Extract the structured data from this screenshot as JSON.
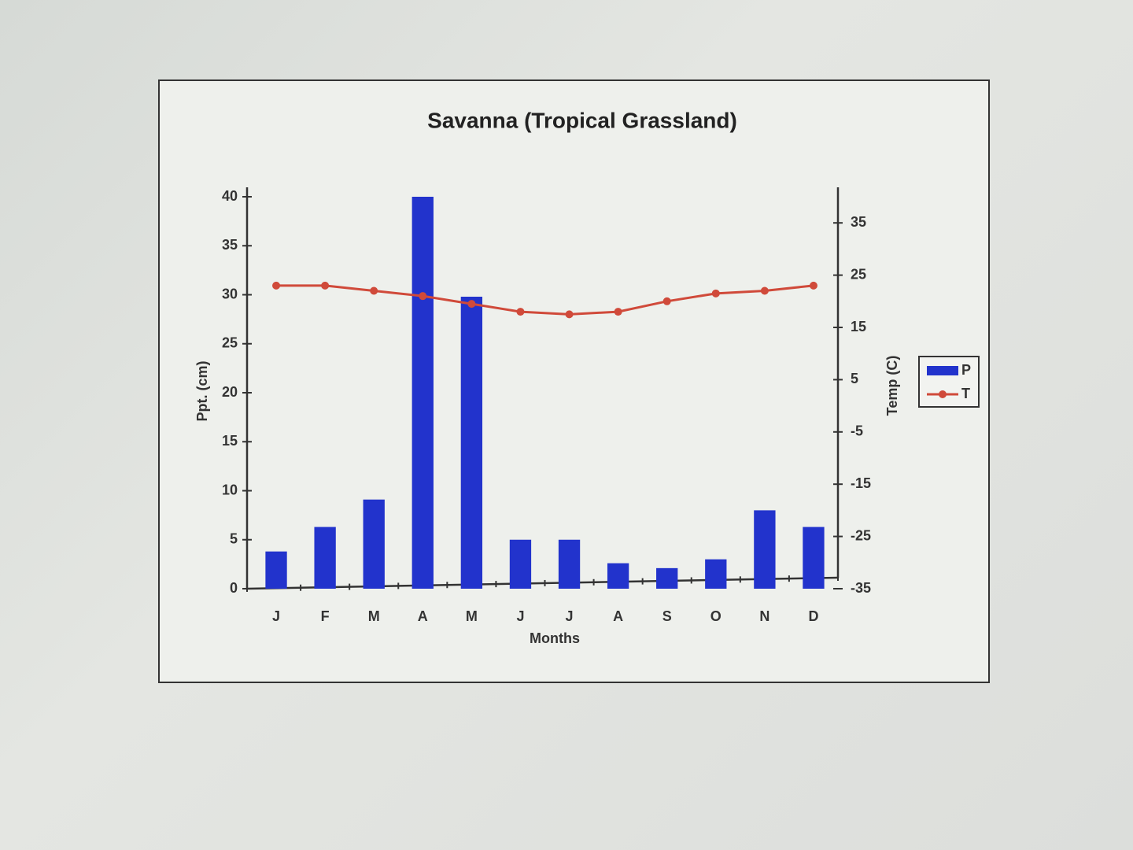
{
  "chart_data": {
    "type": "bar_line",
    "title": "Savanna (Tropical Grassland)",
    "x_label": "Months",
    "y_label": "Ppt. (cm)",
    "y2_label": "Temp (C)",
    "categories": [
      "J",
      "F",
      "M",
      "A",
      "M",
      "J",
      "J",
      "A",
      "S",
      "O",
      "N",
      "D"
    ],
    "series": [
      {
        "name": "P",
        "type": "bar",
        "color": "#2233cc",
        "values": [
          3.8,
          6.3,
          9.1,
          40,
          29.8,
          5,
          5,
          2.6,
          2.1,
          3,
          8,
          6.3
        ]
      },
      {
        "name": "T",
        "type": "line",
        "axis": "y2",
        "color": "#d04a3a",
        "values": [
          23,
          23,
          22,
          21,
          19.5,
          18,
          17.5,
          18,
          20,
          21.5,
          22,
          23
        ]
      }
    ],
    "ylim": [
      0,
      40
    ],
    "yticks": [
      0,
      5,
      10,
      15,
      20,
      25,
      30,
      35,
      40
    ],
    "y2lim": [
      -35,
      40
    ],
    "y2ticks": [
      -35,
      -25,
      -15,
      -5,
      5,
      15,
      25,
      35
    ],
    "legend": "right",
    "grid": false
  }
}
